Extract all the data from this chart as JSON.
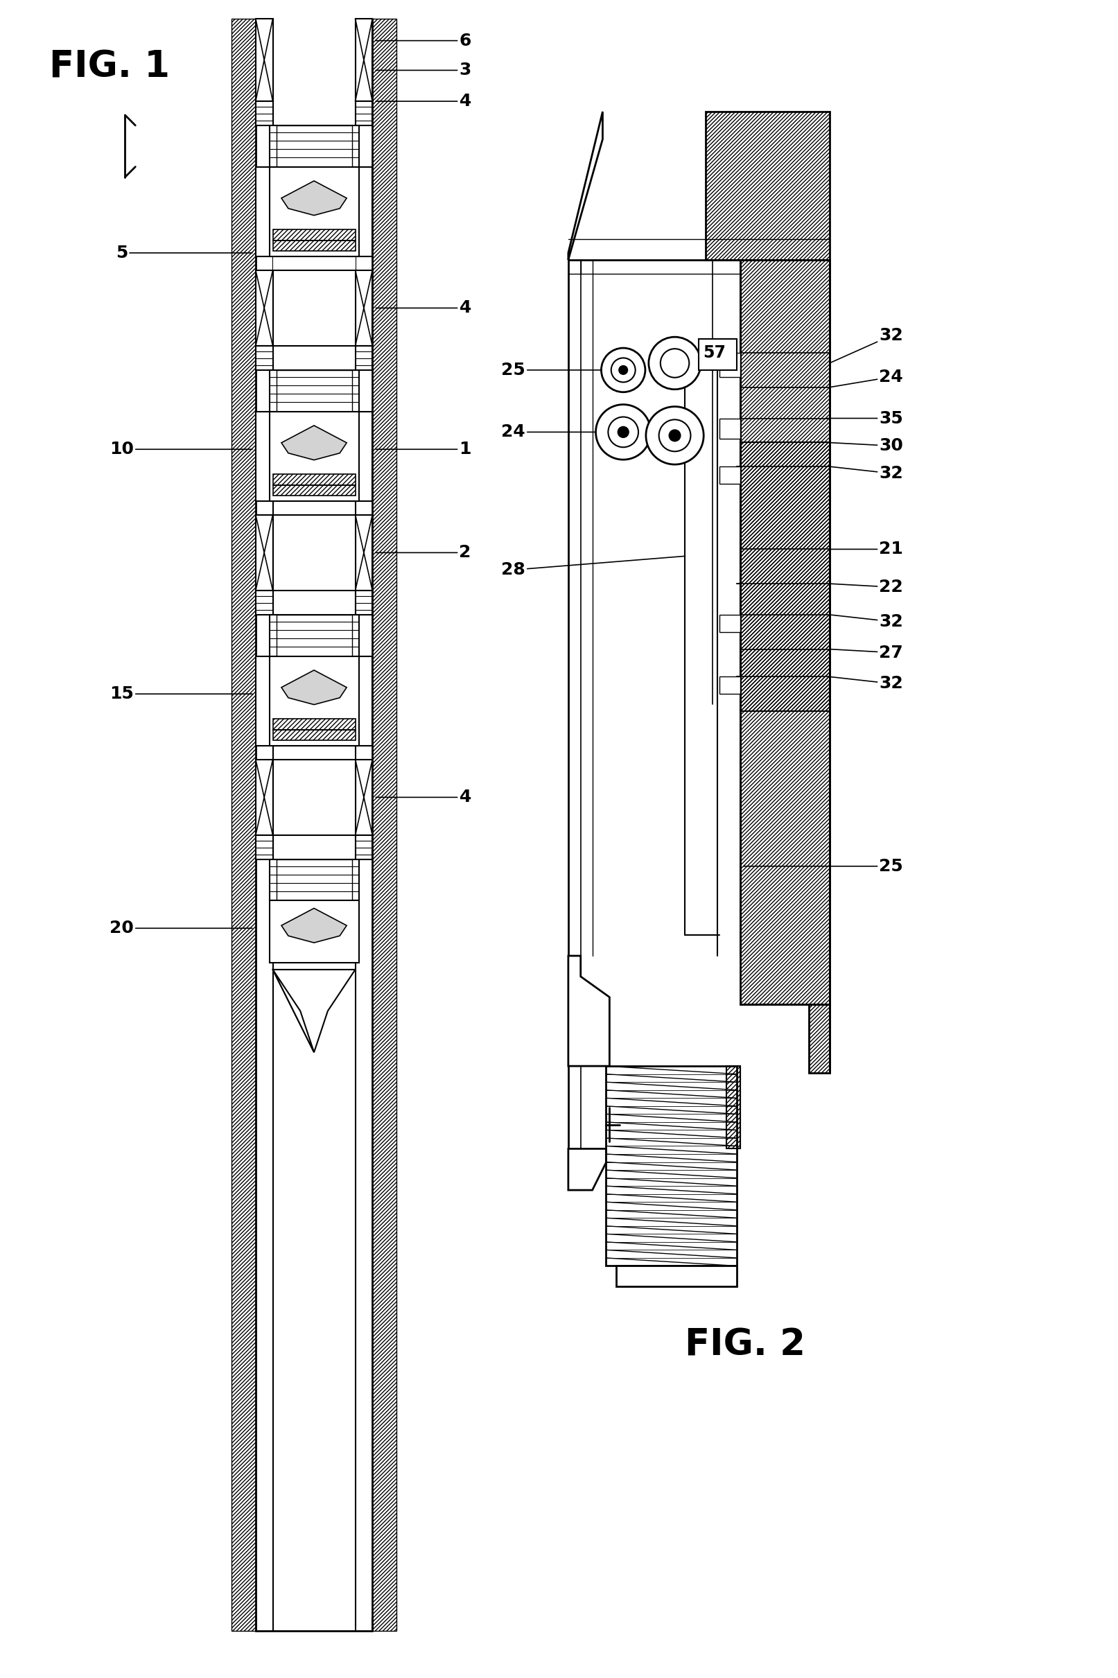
{
  "fig1_label": "FIG. 1",
  "fig2_label": "FIG. 2",
  "bg_color": "#ffffff",
  "line_color": "#000000"
}
